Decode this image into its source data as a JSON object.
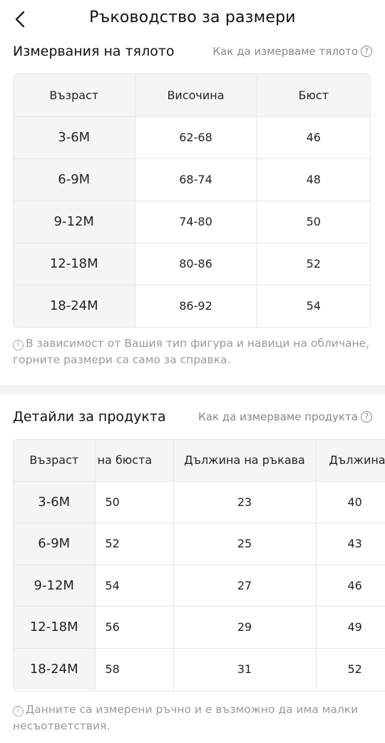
{
  "header": {
    "title": "Ръководство за размери",
    "back_icon": "chevron-left-icon"
  },
  "body_section": {
    "title": "Измервания на тялото",
    "how_link": "Как да измерваме тялото",
    "columns": [
      "Възраст",
      "Височина",
      "Бюст"
    ],
    "rows": [
      [
        "3-6M",
        "62-68",
        "46"
      ],
      [
        "6-9M",
        "68-74",
        "48"
      ],
      [
        "9-12M",
        "74-80",
        "50"
      ],
      [
        "12-18M",
        "80-86",
        "52"
      ],
      [
        "18-24M",
        "86-92",
        "54"
      ]
    ],
    "note": "В зависимост от Вашия тип фигура и навици на обличане, горните размери са само за справка."
  },
  "product_section": {
    "title": "Детайли за продукта",
    "how_link": "Как да измерваме продукта",
    "columns": [
      "Възраст",
      "ер на бюста",
      "Дължина на ръкава",
      "Дължина"
    ],
    "rows": [
      [
        "3-6M",
        "50",
        "23",
        "40"
      ],
      [
        "6-9M",
        "52",
        "25",
        "43"
      ],
      [
        "9-12M",
        "54",
        "27",
        "46"
      ],
      [
        "12-18M",
        "56",
        "29",
        "49"
      ],
      [
        "18-24M",
        "58",
        "31",
        "52"
      ]
    ],
    "note": "Данните са измерени ръчно и е възможно да има малки несъответствия."
  }
}
